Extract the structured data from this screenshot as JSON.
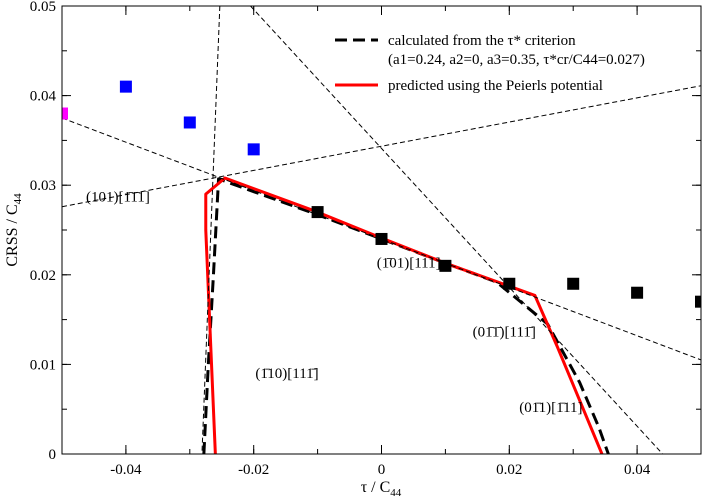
{
  "chart_data": {
    "type": "scatter",
    "xlabel": "τ / C",
    "xlabel_sub": "44",
    "ylabel": "CRSS / C",
    "ylabel_sub": "44",
    "xlim": [
      -0.05,
      0.05
    ],
    "ylim": [
      0,
      0.05
    ],
    "xticks": [
      -0.04,
      -0.02,
      0,
      0.02,
      0.04
    ],
    "xtick_labels": [
      "-0.04",
      "-0.02",
      "0",
      "0.02",
      "0.04"
    ],
    "yticks": [
      0,
      0.01,
      0.02,
      0.03,
      0.04,
      0.05
    ],
    "ytick_labels": [
      "0",
      "0.01",
      "0.02",
      "0.03",
      "0.04",
      "0.05"
    ],
    "grid": false,
    "legend_position": "top-right",
    "legend": {
      "entry1_line1": "calculated from the τ* criterion",
      "entry1_line2": "(a1=0.24, a2=0, a3=0.35, τ*cr/C44=0.027)",
      "entry2": "predicted using the Peierls potential"
    },
    "annotations": [
      {
        "text": "(101)[1̄1̄1]",
        "x": -0.05,
        "y": 0.0282
      },
      {
        "text": "(1̄01)[111]",
        "x": -0.0045,
        "y": 0.0208
      },
      {
        "text": "(01̄1̄)[111̄]",
        "x": 0.0105,
        "y": 0.0131
      },
      {
        "text": "(1̄10)[111̄]",
        "x": -0.0235,
        "y": 0.0085
      },
      {
        "text": "(01̄1)[1̄11]",
        "x": 0.0178,
        "y": 0.0047
      }
    ],
    "series": [
      {
        "marker": "square",
        "color": "#ff00ff",
        "x": [
          -0.05
        ],
        "y": [
          0.038
        ]
      },
      {
        "marker": "square",
        "color": "#0000ff",
        "x": [
          -0.04,
          -0.03,
          -0.02
        ],
        "y": [
          0.041,
          0.037,
          0.034
        ]
      },
      {
        "marker": "square",
        "color": "#000000",
        "x": [
          -0.01,
          0.0,
          0.01,
          0.02,
          0.03,
          0.04,
          0.05
        ],
        "y": [
          0.027,
          0.024,
          0.021,
          0.019,
          0.019,
          0.018,
          0.017
        ]
      },
      {
        "line": "dashed-thick",
        "color": "#000000",
        "x": [
          -0.0278,
          -0.0271,
          -0.0263,
          -0.0255,
          -0.01,
          0.0,
          0.01,
          0.018,
          0.026,
          0.031,
          0.034,
          0.0355
        ],
        "y": [
          0.0,
          0.01,
          0.02,
          0.0307,
          0.0267,
          0.024,
          0.0213,
          0.0192,
          0.0145,
          0.008,
          0.003,
          0.0
        ]
      },
      {
        "line": "solid",
        "color": "#ff0000",
        "x": [
          -0.026,
          -0.0275,
          -0.0275,
          -0.0245,
          -0.01,
          0.0,
          0.01,
          0.024,
          0.0275,
          0.0345
        ],
        "y": [
          0.0,
          0.025,
          0.029,
          0.0308,
          0.027,
          0.0241,
          0.0213,
          0.0177,
          0.012,
          0.0
        ]
      },
      {
        "line": "dashed-thin",
        "color": "#000000",
        "x": [
          -0.05,
          0.05
        ],
        "y": [
          0.0276,
          0.0411
        ]
      },
      {
        "line": "dashed-thin",
        "color": "#000000",
        "x": [
          -0.05,
          0.05
        ],
        "y": [
          0.0375,
          0.0105
        ]
      },
      {
        "line": "dashed-thin",
        "color": "#000000",
        "x": [
          -0.0205,
          0.044
        ],
        "y": [
          0.05,
          0.0
        ]
      },
      {
        "line": "dashed-thin",
        "color": "#000000",
        "x": [
          -0.0253,
          -0.0281
        ],
        "y": [
          0.05,
          0.0
        ]
      }
    ]
  }
}
